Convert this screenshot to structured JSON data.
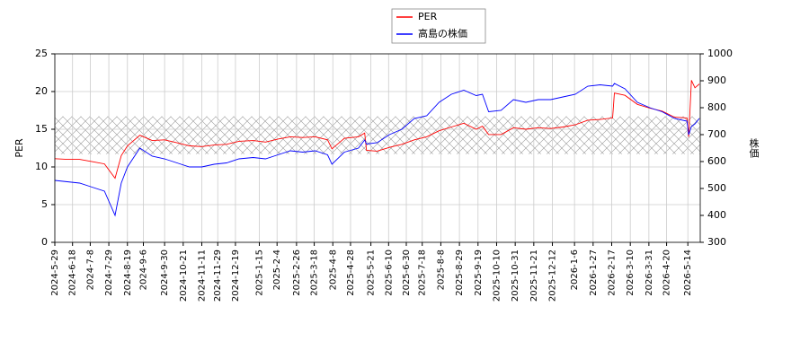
{
  "chart_data": {
    "type": "line",
    "y_label": "PER",
    "y2_label": "株価",
    "x": [
      "2024-5-29",
      "2024-6-12",
      "2024-6-26",
      "2024-7-10",
      "2024-7-24",
      "2024-8-5",
      "2024-8-12",
      "2024-8-19",
      "2024-9-2",
      "2024-9-16",
      "2024-9-30",
      "2024-10-14",
      "2024-10-28",
      "2024-11-11",
      "2024-11-25",
      "2024-12-9",
      "2024-12-23",
      "2025-1-8",
      "2025-1-22",
      "2025-2-5",
      "2025-2-19",
      "2025-3-5",
      "2025-3-19",
      "2025-4-2",
      "2025-4-7",
      "2025-4-21",
      "2025-5-7",
      "2025-5-14",
      "2025-5-16",
      "2025-5-28",
      "2025-6-11",
      "2025-6-25",
      "2025-7-9",
      "2025-7-23",
      "2025-8-6",
      "2025-8-20",
      "2025-9-3",
      "2025-9-17",
      "2025-9-24",
      "2025-10-1",
      "2025-10-15",
      "2025-10-29",
      "2025-11-12",
      "2025-11-26",
      "2025-12-10",
      "2025-12-24",
      "2026-1-7",
      "2026-1-21",
      "2026-2-4",
      "2026-2-18",
      "2026-2-20",
      "2026-3-4",
      "2026-3-18",
      "2026-4-1",
      "2026-4-15",
      "2026-4-29",
      "2026-5-13",
      "2026-5-15",
      "2026-5-18",
      "2026-5-22",
      "2026-5-27"
    ],
    "series": [
      {
        "name": "PER",
        "color": "#ff0000",
        "values": [
          11.1,
          11.0,
          11.0,
          10.7,
          10.4,
          8.5,
          11.5,
          12.8,
          14.2,
          13.5,
          13.6,
          13.2,
          12.8,
          12.7,
          12.9,
          13.0,
          13.4,
          13.5,
          13.3,
          13.7,
          14.0,
          13.9,
          14.0,
          13.6,
          12.4,
          13.8,
          14.0,
          14.5,
          12.2,
          12.1,
          12.6,
          13.0,
          13.6,
          14.0,
          14.8,
          15.3,
          15.8,
          15.0,
          15.4,
          14.3,
          14.3,
          15.2,
          15.0,
          15.2,
          15.1,
          15.3,
          15.6,
          16.2,
          16.3,
          16.5,
          19.8,
          19.5,
          18.3,
          17.8,
          17.4,
          16.6,
          16.5,
          14.0,
          21.5,
          20.5,
          21.0
        ]
      },
      {
        "name": "高島の株価",
        "color": "#0000ff",
        "axis": "y2",
        "values": [
          530,
          525,
          520,
          505,
          490,
          400,
          520,
          580,
          650,
          620,
          610,
          595,
          580,
          580,
          590,
          595,
          610,
          615,
          610,
          625,
          640,
          635,
          640,
          625,
          590,
          635,
          650,
          680,
          665,
          670,
          700,
          720,
          760,
          770,
          820,
          850,
          865,
          845,
          850,
          785,
          790,
          830,
          820,
          830,
          830,
          840,
          850,
          880,
          885,
          880,
          890,
          870,
          820,
          800,
          785,
          760,
          750,
          700,
          730,
          740,
          760
        ]
      }
    ],
    "shaded_range": [
      11.7,
      16.7
    ],
    "xlim": [
      "2024-5-29",
      "2026-5-28"
    ],
    "xticks": [
      "2024-5-29",
      "2024-6-18",
      "2024-7-8",
      "2024-7-29",
      "2024-8-19",
      "2024-9-6",
      "2024-9-30",
      "2024-10-21",
      "2024-11-11",
      "2024-11-29",
      "2024-12-19",
      "2025-1-15",
      "2025-2-4",
      "2025-2-26",
      "2025-3-18",
      "2025-4-8",
      "2025-4-28",
      "2025-5-21",
      "2025-6-10",
      "2025-6-30",
      "2025-7-18",
      "2025-8-8",
      "2025-8-29",
      "2025-9-19",
      "2025-10-10",
      "2025-10-31",
      "2025-11-21",
      "2025-12-12",
      "2026-1-6",
      "2026-1-27",
      "2026-2-17",
      "2026-3-10",
      "2026-3-31",
      "2026-4-20",
      "2026-5-14"
    ],
    "ylim": [
      0,
      25
    ],
    "yticks": [
      0,
      5,
      10,
      15,
      20,
      25
    ],
    "y2lim": [
      300,
      1000
    ],
    "y2ticks": [
      300,
      400,
      500,
      600,
      700,
      800,
      900,
      1000
    ],
    "grid": true
  }
}
